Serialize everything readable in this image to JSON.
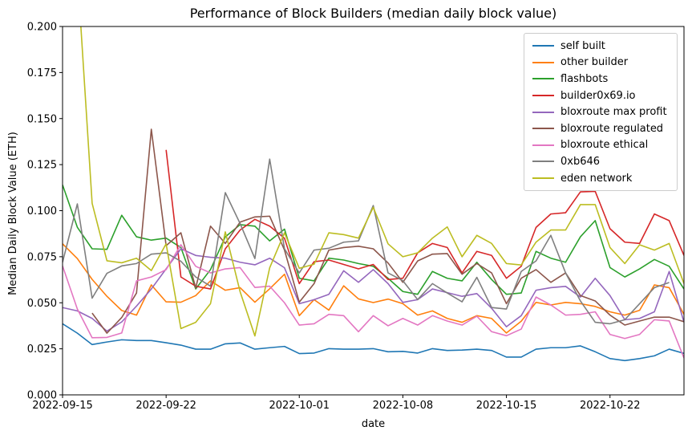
{
  "figure": {
    "title": "Performance of Block Builders (median daily block value)",
    "xlabel": "date",
    "ylabel": "Median Daily Block Value (ETH)"
  },
  "colors": {
    "background": "#ffffff",
    "spine": "#000000",
    "tick_text": "#000000",
    "legend_border": "#cccccc"
  },
  "chart_data": {
    "type": "line",
    "title": "Performance of Block Builders (median daily block value)",
    "xlabel": "date",
    "ylabel": "Median Daily Block Value (ETH)",
    "grid": false,
    "legend_position": "upper right",
    "ylim": [
      0.0,
      0.2
    ],
    "y_tick_labels": [
      "0.000",
      "0.025",
      "0.050",
      "0.075",
      "0.100",
      "0.125",
      "0.150",
      "0.175",
      "0.200"
    ],
    "x_tick_indices": [
      0,
      7,
      16,
      23,
      30,
      37
    ],
    "x": [
      "2022-09-15",
      "2022-09-16",
      "2022-09-17",
      "2022-09-18",
      "2022-09-19",
      "2022-09-20",
      "2022-09-21",
      "2022-09-22",
      "2022-09-23",
      "2022-09-24",
      "2022-09-25",
      "2022-09-26",
      "2022-09-27",
      "2022-09-28",
      "2022-09-29",
      "2022-09-30",
      "2022-10-01",
      "2022-10-02",
      "2022-10-03",
      "2022-10-04",
      "2022-10-05",
      "2022-10-06",
      "2022-10-07",
      "2022-10-08",
      "2022-10-09",
      "2022-10-10",
      "2022-10-11",
      "2022-10-12",
      "2022-10-13",
      "2022-10-14",
      "2022-10-15",
      "2022-10-16",
      "2022-10-17",
      "2022-10-18",
      "2022-10-19",
      "2022-10-20",
      "2022-10-21",
      "2022-10-22",
      "2022-10-23",
      "2022-10-24",
      "2022-10-25",
      "2022-10-26",
      "2022-10-27"
    ],
    "series": [
      {
        "name": "self built",
        "color": "#1f77b4",
        "values": [
          0.0386,
          0.0335,
          0.0273,
          0.0287,
          0.0299,
          0.0295,
          0.0295,
          0.0283,
          0.027,
          0.0248,
          0.0248,
          0.0277,
          0.0282,
          0.0248,
          0.0256,
          0.0263,
          0.0224,
          0.0227,
          0.0251,
          0.0248,
          0.0248,
          0.0251,
          0.0234,
          0.0236,
          0.0227,
          0.0251,
          0.0241,
          0.0243,
          0.0248,
          0.0241,
          0.0205,
          0.0205,
          0.0248,
          0.0256,
          0.0256,
          0.0266,
          0.0234,
          0.0197,
          0.0186,
          0.0197,
          0.0212,
          0.0248,
          0.0225
        ]
      },
      {
        "name": "other builder",
        "color": "#ff7f0e",
        "values": [
          0.082,
          0.074,
          0.0627,
          0.0535,
          0.0458,
          0.0433,
          0.0597,
          0.0505,
          0.0503,
          0.0539,
          0.0619,
          0.0568,
          0.0582,
          0.0503,
          0.0576,
          0.0655,
          0.043,
          0.0517,
          0.046,
          0.0592,
          0.0521,
          0.0501,
          0.052,
          0.0495,
          0.0433,
          0.0456,
          0.0415,
          0.0394,
          0.043,
          0.0415,
          0.0336,
          0.04,
          0.0502,
          0.0488,
          0.0502,
          0.0495,
          0.048,
          0.0451,
          0.0433,
          0.0459,
          0.0597,
          0.0582,
          0.0437
        ]
      },
      {
        "name": "flashbots",
        "color": "#2ca02c",
        "values": [
          0.114,
          0.091,
          0.0793,
          0.079,
          0.0975,
          0.0858,
          0.084,
          0.0851,
          0.08,
          0.0575,
          0.068,
          0.0858,
          0.0924,
          0.0916,
          0.0836,
          0.09,
          0.0633,
          0.0619,
          0.0742,
          0.0732,
          0.0713,
          0.0698,
          0.0633,
          0.0561,
          0.0546,
          0.067,
          0.0633,
          0.0619,
          0.072,
          0.0626,
          0.0546,
          0.0553,
          0.0779,
          0.0742,
          0.072,
          0.0858,
          0.0946,
          0.0691,
          0.064,
          0.0684,
          0.0735,
          0.0698,
          0.0575
        ]
      },
      {
        "name": "builder0x69.io",
        "color": "#d62728",
        "values": [
          null,
          null,
          null,
          null,
          null,
          null,
          null,
          0.133,
          0.064,
          0.059,
          0.0575,
          0.0793,
          0.0895,
          0.0953,
          0.0916,
          0.085,
          0.0604,
          0.0723,
          0.0732,
          0.0708,
          0.0684,
          0.0708,
          0.0626,
          0.0633,
          0.0771,
          0.0822,
          0.08,
          0.0662,
          0.0779,
          0.0757,
          0.0633,
          0.0698,
          0.0909,
          0.0982,
          0.0989,
          0.1102,
          0.1105,
          0.0902,
          0.0829,
          0.0822,
          0.0982,
          0.0946,
          0.0757
        ]
      },
      {
        "name": "bloxroute max profit",
        "color": "#9467bd",
        "values": [
          0.0474,
          0.0456,
          0.0415,
          0.0346,
          0.0396,
          0.0482,
          0.0575,
          0.0684,
          0.0793,
          0.0757,
          0.0747,
          0.0742,
          0.072,
          0.0706,
          0.0742,
          0.069,
          0.0495,
          0.0517,
          0.0546,
          0.0674,
          0.0611,
          0.068,
          0.0604,
          0.0502,
          0.0517,
          0.0575,
          0.0555,
          0.0535,
          0.055,
          0.047,
          0.037,
          0.043,
          0.0568,
          0.0582,
          0.0589,
          0.0531,
          0.0633,
          0.0539,
          0.0408,
          0.0415,
          0.0451,
          0.067,
          0.0394
        ]
      },
      {
        "name": "bloxroute regulated",
        "color": "#8c564b",
        "values": [
          null,
          null,
          0.0444,
          0.0335,
          0.042,
          0.0553,
          0.1442,
          0.081,
          0.088,
          0.058,
          0.0916,
          0.0822,
          0.0938,
          0.0966,
          0.097,
          0.0786,
          0.0503,
          0.0604,
          0.0786,
          0.08,
          0.0807,
          0.0793,
          0.0716,
          0.0611,
          0.0727,
          0.0764,
          0.0767,
          0.0655,
          0.0713,
          0.0662,
          0.0495,
          0.0633,
          0.068,
          0.0611,
          0.0662,
          0.0539,
          0.051,
          0.0433,
          0.0379,
          0.0401,
          0.0422,
          0.0422,
          0.0397
        ]
      },
      {
        "name": "bloxroute ethical",
        "color": "#e377c2",
        "values": [
          0.07,
          0.0466,
          0.031,
          0.0312,
          0.0336,
          0.0619,
          0.064,
          0.068,
          0.0815,
          0.0698,
          0.0662,
          0.0684,
          0.0691,
          0.0583,
          0.059,
          0.05,
          0.0379,
          0.0386,
          0.0437,
          0.043,
          0.0343,
          0.043,
          0.0375,
          0.0415,
          0.0379,
          0.043,
          0.0401,
          0.0379,
          0.0427,
          0.0343,
          0.0321,
          0.0357,
          0.0531,
          0.0488,
          0.0433,
          0.0437,
          0.0451,
          0.0328,
          0.0306,
          0.0328,
          0.0408,
          0.0401,
          0.02
        ]
      },
      {
        "name": "0xb646",
        "color": "#7f7f7f",
        "values": [
          0.072,
          0.1037,
          0.0525,
          0.066,
          0.07,
          0.0713,
          0.0764,
          0.0771,
          0.0725,
          0.064,
          0.059,
          0.1098,
          0.093,
          0.074,
          0.128,
          0.0793,
          0.0662,
          0.0786,
          0.0796,
          0.0829,
          0.0836,
          0.1028,
          0.0662,
          0.062,
          0.0517,
          0.0604,
          0.0553,
          0.0505,
          0.0638,
          0.0474,
          0.0466,
          0.067,
          0.0727,
          0.0866,
          0.0662,
          0.051,
          0.0394,
          0.0386,
          0.0408,
          0.0495,
          0.0582,
          0.061,
          null
        ]
      },
      {
        "name": "eden network",
        "color": "#bcbd22",
        "values": [
          0.32,
          0.23,
          0.104,
          0.0728,
          0.0717,
          0.0742,
          0.0675,
          0.082,
          0.036,
          0.0394,
          0.0495,
          0.0885,
          0.056,
          0.032,
          0.069,
          0.088,
          0.0687,
          0.0709,
          0.088,
          0.087,
          0.0851,
          0.1018,
          0.082,
          0.075,
          0.0771,
          0.0851,
          0.0912,
          0.075,
          0.0866,
          0.0822,
          0.0713,
          0.0705,
          0.0829,
          0.0895,
          0.0895,
          0.1033,
          0.1033,
          0.08,
          0.0713,
          0.0815,
          0.0786,
          0.0822,
          0.0604
        ]
      }
    ]
  }
}
